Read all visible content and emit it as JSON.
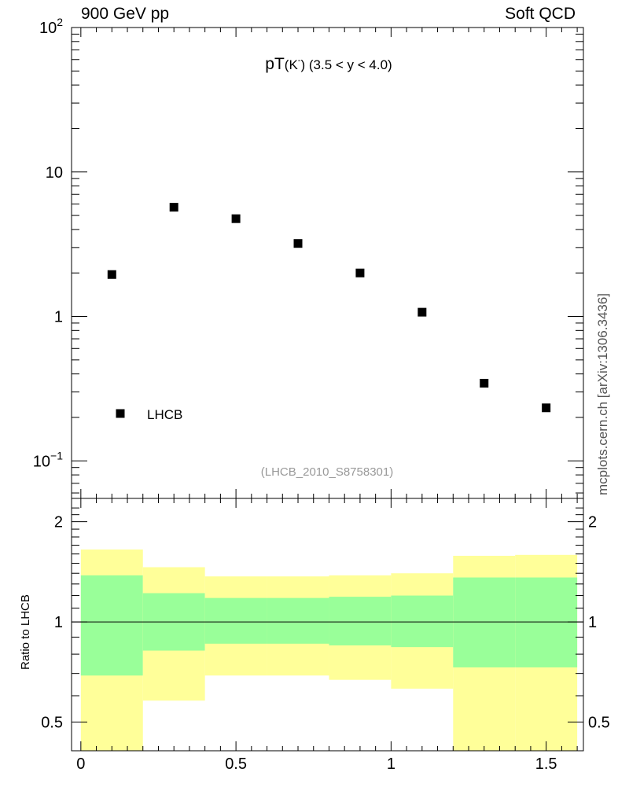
{
  "header": {
    "left_text": "900 GeV pp",
    "right_text": "Soft QCD"
  },
  "side_credit": "mcplots.cern.ch [arXiv:1306.3436]",
  "chart_data": [
    {
      "type": "scatter",
      "title_main": "pT",
      "title_particle": "(K",
      "title_superscript": "-",
      "title_close": ")",
      "title_cut": "(3.5 < y < 4.0)",
      "y_scale": "log",
      "ylim": [
        0.055,
        100
      ],
      "xlim": [
        -0.03,
        1.62
      ],
      "y_tick_labels": [
        {
          "value": 0.1,
          "base": "10",
          "exp": "−1"
        },
        {
          "value": 1,
          "text": "1"
        },
        {
          "value": 10,
          "text": "10"
        },
        {
          "value": 100,
          "base": "10",
          "exp": "2"
        }
      ],
      "legend": {
        "label": "LHCB",
        "placement": "bottom-left"
      },
      "annotation": "(LHCB_2010_S8758301)",
      "series": [
        {
          "name": "LHCB",
          "color": "#000000",
          "x": [
            0.1,
            0.3,
            0.5,
            0.7,
            0.9,
            1.1,
            1.3,
            1.5
          ],
          "y": [
            1.95,
            5.7,
            4.75,
            3.2,
            2.0,
            1.07,
            0.345,
            0.233
          ]
        }
      ]
    },
    {
      "type": "area",
      "ylabel": "Ratio to LHCB",
      "y_scale": "log",
      "ylim": [
        0.41,
        2.35
      ],
      "xlim": [
        -0.03,
        1.62
      ],
      "x_tick_labels": [
        {
          "value": 0,
          "text": "0"
        },
        {
          "value": 0.5,
          "text": "0.5"
        },
        {
          "value": 1,
          "text": "1"
        },
        {
          "value": 1.5,
          "text": "1.5"
        }
      ],
      "y_tick_labels": [
        {
          "value": 0.5,
          "text": "0.5"
        },
        {
          "value": 1,
          "text": "1"
        },
        {
          "value": 2,
          "text": "2"
        }
      ],
      "reference_line": 1,
      "bins": [
        {
          "x0": 0.0,
          "x1": 0.2,
          "yellow": [
            0.4,
            1.65
          ],
          "green": [
            0.69,
            1.38
          ]
        },
        {
          "x0": 0.2,
          "x1": 0.4,
          "yellow": [
            0.58,
            1.46
          ],
          "green": [
            0.82,
            1.22
          ]
        },
        {
          "x0": 0.4,
          "x1": 0.6,
          "yellow": [
            0.69,
            1.37
          ],
          "green": [
            0.86,
            1.18
          ]
        },
        {
          "x0": 0.6,
          "x1": 0.8,
          "yellow": [
            0.69,
            1.37
          ],
          "green": [
            0.86,
            1.18
          ]
        },
        {
          "x0": 0.8,
          "x1": 1.0,
          "yellow": [
            0.67,
            1.38
          ],
          "green": [
            0.85,
            1.19
          ]
        },
        {
          "x0": 1.0,
          "x1": 1.2,
          "yellow": [
            0.63,
            1.4
          ],
          "green": [
            0.84,
            1.2
          ]
        },
        {
          "x0": 1.2,
          "x1": 1.4,
          "yellow": [
            0.4,
            1.58
          ],
          "green": [
            0.73,
            1.36
          ]
        },
        {
          "x0": 1.4,
          "x1": 1.6,
          "yellow": [
            0.4,
            1.59
          ],
          "green": [
            0.73,
            1.36
          ]
        }
      ],
      "band_colors": {
        "yellow": "#ffff99",
        "green": "#99ff99"
      }
    }
  ]
}
